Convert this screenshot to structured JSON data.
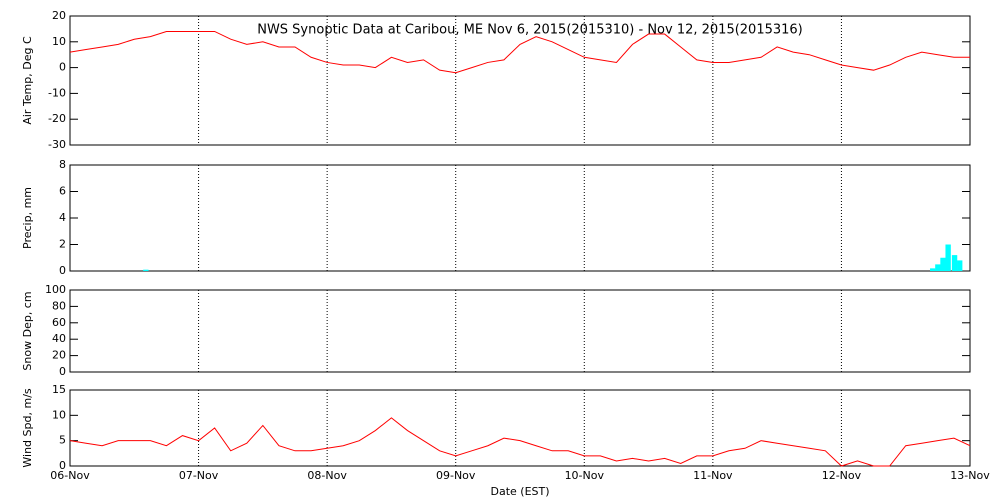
{
  "chart_data": [
    {
      "type": "line",
      "title": "NWS Synoptic Data at Caribou, ME   Nov  6, 2015(2015310) - Nov 12, 2015(2015316)",
      "ylabel": "Air Temp, Deg C",
      "color": "#ff0000",
      "x": [
        0,
        0.125,
        0.25,
        0.375,
        0.5,
        0.625,
        0.75,
        0.875,
        1,
        1.125,
        1.25,
        1.375,
        1.5,
        1.625,
        1.75,
        1.875,
        2,
        2.125,
        2.25,
        2.375,
        2.5,
        2.625,
        2.75,
        2.875,
        3,
        3.125,
        3.25,
        3.375,
        3.5,
        3.625,
        3.75,
        3.875,
        4,
        4.125,
        4.25,
        4.375,
        4.5,
        4.625,
        4.75,
        4.875,
        5,
        5.125,
        5.25,
        5.375,
        5.5,
        5.625,
        5.75,
        5.875,
        6,
        6.125,
        6.25,
        6.375,
        6.5,
        6.625,
        6.75,
        6.875,
        7
      ],
      "values": [
        6,
        7,
        8,
        9,
        11,
        12,
        14,
        14,
        14,
        14,
        11,
        9,
        10,
        8,
        8,
        4,
        2,
        1,
        1,
        0,
        4,
        2,
        3,
        -1,
        -2,
        0,
        2,
        3,
        9,
        12,
        10,
        7,
        4,
        3,
        2,
        9,
        13,
        13,
        8,
        3,
        2,
        2,
        3,
        4,
        8,
        6,
        5,
        3,
        1,
        0,
        -1,
        1,
        4,
        6,
        5,
        4,
        4
      ],
      "ylim": [
        -30,
        20
      ],
      "yticks": [
        -30,
        -20,
        -10,
        0,
        10,
        20
      ]
    },
    {
      "type": "bar",
      "ylabel": "Precip, mm",
      "color": "#00ffff",
      "x": [
        0.59,
        6.71,
        6.75,
        6.79,
        6.83,
        6.88,
        6.92
      ],
      "values": [
        0.1,
        0.2,
        0.5,
        1,
        2,
        1.2,
        0.8
      ],
      "ylim": [
        0,
        8
      ],
      "yticks": [
        0,
        2,
        4,
        6,
        8
      ]
    },
    {
      "type": "line",
      "ylabel": "Snow Dep, cm",
      "ylim": [
        0,
        100
      ],
      "yticks": [
        0,
        20,
        40,
        60,
        80,
        100
      ]
    },
    {
      "type": "line",
      "ylabel": "Wind Spd, m/s",
      "xlabel": "Date (EST)",
      "color": "#ff0000",
      "x": [
        0,
        0.125,
        0.25,
        0.375,
        0.5,
        0.625,
        0.75,
        0.875,
        1,
        1.125,
        1.25,
        1.375,
        1.5,
        1.625,
        1.75,
        1.875,
        2,
        2.125,
        2.25,
        2.375,
        2.5,
        2.625,
        2.75,
        2.875,
        3,
        3.125,
        3.25,
        3.375,
        3.5,
        3.625,
        3.75,
        3.875,
        4,
        4.125,
        4.25,
        4.375,
        4.5,
        4.625,
        4.75,
        4.875,
        5,
        5.125,
        5.25,
        5.375,
        5.5,
        5.625,
        5.75,
        5.875,
        6,
        6.125,
        6.25,
        6.375,
        6.5,
        6.625,
        6.75,
        6.875,
        7
      ],
      "values": [
        5,
        4.5,
        4,
        5,
        5,
        5,
        4,
        6,
        5,
        7.5,
        3,
        4.5,
        8,
        4,
        3,
        3,
        3.5,
        4,
        5,
        7,
        9.5,
        7,
        5,
        3,
        2,
        3,
        4,
        5.5,
        5,
        4,
        3,
        3,
        2,
        2,
        1,
        1.5,
        1,
        1.5,
        0.5,
        2,
        2,
        3,
        3.5,
        5,
        4.5,
        4,
        3.5,
        3,
        0,
        1,
        0,
        0,
        4,
        4.5,
        5,
        5.5,
        4
      ],
      "ylim": [
        0,
        15
      ],
      "yticks": [
        0,
        5,
        10,
        15
      ],
      "xlim": [
        0,
        7
      ],
      "xticks": [
        {
          "value": 0,
          "label": "06-Nov"
        },
        {
          "value": 1,
          "label": "07-Nov"
        },
        {
          "value": 2,
          "label": "08-Nov"
        },
        {
          "value": 3,
          "label": "09-Nov"
        },
        {
          "value": 4,
          "label": "10-Nov"
        },
        {
          "value": 5,
          "label": "11-Nov"
        },
        {
          "value": 6,
          "label": "12-Nov"
        },
        {
          "value": 7,
          "label": "13-Nov"
        }
      ]
    }
  ]
}
